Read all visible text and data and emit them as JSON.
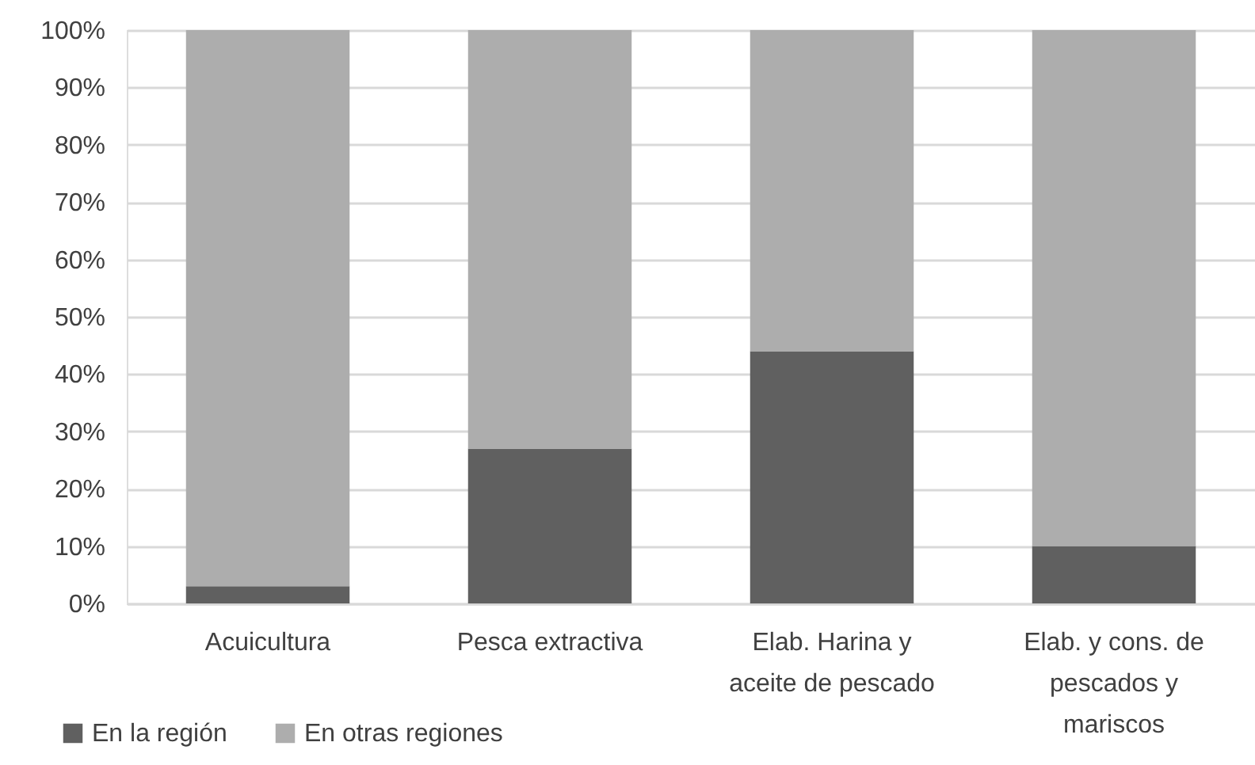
{
  "chart_data": {
    "type": "bar",
    "stacked": true,
    "categories": [
      "Acuicultura",
      "Pesca extractiva",
      "Elab. Harina y aceite de pescado",
      "Elab. y cons. de pescados y mariscos"
    ],
    "series": [
      {
        "name": "En la región",
        "color": "#606060",
        "values": [
          3,
          27,
          44,
          10
        ]
      },
      {
        "name": "En otras regiones",
        "color": "#adadad",
        "values": [
          97,
          73,
          56,
          90
        ]
      }
    ],
    "ylim": [
      0,
      100
    ],
    "yticks": [
      {
        "value": 0,
        "label": "0%"
      },
      {
        "value": 10,
        "label": "10%"
      },
      {
        "value": 20,
        "label": "20%"
      },
      {
        "value": 30,
        "label": "30%"
      },
      {
        "value": 40,
        "label": "40%"
      },
      {
        "value": 50,
        "label": "50%"
      },
      {
        "value": 60,
        "label": "60%"
      },
      {
        "value": 70,
        "label": "70%"
      },
      {
        "value": 80,
        "label": "80%"
      },
      {
        "value": 90,
        "label": "90%"
      },
      {
        "value": 100,
        "label": "100%"
      }
    ],
    "grid": "y",
    "legend": "bottom left"
  }
}
